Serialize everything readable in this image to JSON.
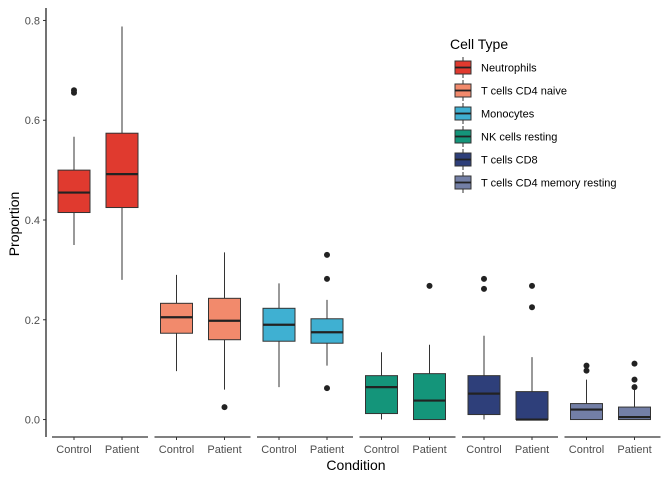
{
  "chart_data": {
    "type": "box",
    "xlabel": "Condition",
    "ylabel": "Proportion",
    "ylim": [
      -0.035,
      0.825
    ],
    "yticks": [
      0.0,
      0.2,
      0.4,
      0.6,
      0.8
    ],
    "ytick_labels": [
      "0.0",
      "0.2",
      "0.4",
      "0.6",
      "0.8"
    ],
    "conditions": [
      "Control",
      "Patient"
    ],
    "legend": {
      "title": "Cell Type",
      "position": "top-right"
    },
    "series": [
      {
        "name": "Neutrophils",
        "color": "#e03a2f",
        "boxes": [
          {
            "condition": "Control",
            "whisker_low": 0.35,
            "q1": 0.415,
            "median": 0.455,
            "q3": 0.5,
            "whisker_high": 0.567,
            "outliers": [
              0.655,
              0.66
            ]
          },
          {
            "condition": "Patient",
            "whisker_low": 0.28,
            "q1": 0.425,
            "median": 0.492,
            "q3": 0.574,
            "whisker_high": 0.788,
            "outliers": []
          }
        ]
      },
      {
        "name": "T cells CD4 naive",
        "color": "#f28a6c",
        "boxes": [
          {
            "condition": "Control",
            "whisker_low": 0.097,
            "q1": 0.173,
            "median": 0.205,
            "q3": 0.233,
            "whisker_high": 0.29,
            "outliers": []
          },
          {
            "condition": "Patient",
            "whisker_low": 0.06,
            "q1": 0.16,
            "median": 0.198,
            "q3": 0.243,
            "whisker_high": 0.335,
            "outliers": [
              0.025
            ]
          }
        ]
      },
      {
        "name": "Monocytes",
        "color": "#3fb0d2",
        "boxes": [
          {
            "condition": "Control",
            "whisker_low": 0.065,
            "q1": 0.157,
            "median": 0.19,
            "q3": 0.223,
            "whisker_high": 0.273,
            "outliers": []
          },
          {
            "condition": "Patient",
            "whisker_low": 0.108,
            "q1": 0.153,
            "median": 0.175,
            "q3": 0.202,
            "whisker_high": 0.24,
            "outliers": [
              0.33,
              0.282,
              0.063
            ]
          }
        ]
      },
      {
        "name": "NK cells resting",
        "color": "#14957a",
        "boxes": [
          {
            "condition": "Control",
            "whisker_low": 0.0,
            "q1": 0.012,
            "median": 0.065,
            "q3": 0.088,
            "whisker_high": 0.135,
            "outliers": []
          },
          {
            "condition": "Patient",
            "whisker_low": 0.0,
            "q1": 0.0,
            "median": 0.038,
            "q3": 0.092,
            "whisker_high": 0.15,
            "outliers": [
              0.268
            ]
          }
        ]
      },
      {
        "name": "T cells CD8",
        "color": "#2e3f7a",
        "boxes": [
          {
            "condition": "Control",
            "whisker_low": 0.0,
            "q1": 0.01,
            "median": 0.052,
            "q3": 0.088,
            "whisker_high": 0.168,
            "outliers": [
              0.282,
              0.262
            ]
          },
          {
            "condition": "Patient",
            "whisker_low": 0.0,
            "q1": 0.0,
            "median": 0.0,
            "q3": 0.056,
            "whisker_high": 0.125,
            "outliers": [
              0.268,
              0.225
            ]
          }
        ]
      },
      {
        "name": "T cells CD4 memory resting",
        "color": "#737fa6",
        "boxes": [
          {
            "condition": "Control",
            "whisker_low": 0.0,
            "q1": 0.0,
            "median": 0.02,
            "q3": 0.032,
            "whisker_high": 0.08,
            "outliers": [
              0.108,
              0.098
            ]
          },
          {
            "condition": "Patient",
            "whisker_low": 0.0,
            "q1": 0.0,
            "median": 0.005,
            "q3": 0.025,
            "whisker_high": 0.06,
            "outliers": [
              0.112,
              0.08,
              0.065
            ]
          }
        ]
      }
    ]
  }
}
